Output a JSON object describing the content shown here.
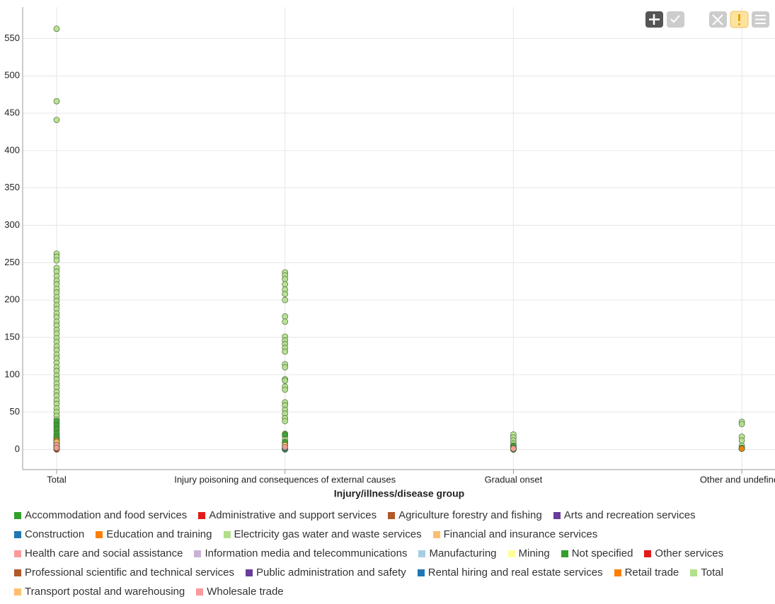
{
  "chart_data": {
    "type": "scatter",
    "x_label": "Injury/illness/disease group",
    "categories": [
      "Total",
      "Injury poisoning and consequences of external causes",
      "Gradual onset",
      "Other and undefined"
    ],
    "ylim": [
      -27,
      592
    ],
    "yticks": [
      0,
      50,
      100,
      150,
      200,
      250,
      300,
      350,
      400,
      450,
      500,
      550
    ],
    "grid": true,
    "series": [
      {
        "name": "Accommodation and food services",
        "color": "#33a02c",
        "values": [
          [
            14,
            9
          ],
          [
            6
          ],
          [
            2
          ],
          [
            1
          ]
        ]
      },
      {
        "name": "Administrative and support services",
        "color": "#e31a1c",
        "values": [
          [
            4,
            1
          ],
          [
            2
          ],
          [
            1
          ],
          []
        ]
      },
      {
        "name": "Agriculture forestry and fishing",
        "color": "#b15928",
        "values": [
          [
            6,
            2
          ],
          [
            3
          ],
          [
            1
          ],
          []
        ]
      },
      {
        "name": "Arts and recreation services",
        "color": "#6a3d9a",
        "values": [
          [
            2
          ],
          [
            1
          ],
          [
            0
          ],
          []
        ]
      },
      {
        "name": "Construction",
        "color": "#1f78b4",
        "values": [
          [
            11,
            5
          ],
          [
            8
          ],
          [
            2
          ],
          [
            1
          ]
        ]
      },
      {
        "name": "Education and training",
        "color": "#ff7f00",
        "values": [
          [
            7,
            3
          ],
          [
            4
          ],
          [
            2
          ],
          []
        ]
      },
      {
        "name": "Electricity gas water and waste services",
        "color": "#b2df8a",
        "values": [
          [
            3
          ],
          [
            1
          ],
          [
            0
          ],
          []
        ]
      },
      {
        "name": "Financial and insurance services",
        "color": "#fdbf6f",
        "values": [
          [
            2
          ],
          [
            0
          ],
          [
            0
          ],
          []
        ]
      },
      {
        "name": "Health care and social assistance",
        "color": "#fb9a99",
        "values": [
          [
            17,
            8
          ],
          [
            10
          ],
          [
            4
          ],
          [
            2
          ]
        ]
      },
      {
        "name": "Information media and telecommunications",
        "color": "#cab2d6",
        "values": [
          [
            2
          ],
          [
            1
          ],
          [
            0
          ],
          []
        ]
      },
      {
        "name": "Manufacturing",
        "color": "#a6cee3",
        "values": [
          [
            13,
            6
          ],
          [
            7
          ],
          [
            3
          ],
          [
            1
          ]
        ]
      },
      {
        "name": "Mining",
        "color": "#ffff99",
        "values": [
          [
            3
          ],
          [
            1
          ],
          [
            0
          ],
          []
        ]
      },
      {
        "name": "Not specified",
        "color": "#33a02c",
        "values": [
          [
            38,
            33,
            28,
            22,
            17,
            12,
            8
          ],
          [
            20,
            10,
            3
          ],
          [
            5
          ],
          [
            2
          ]
        ]
      },
      {
        "name": "Other services",
        "color": "#e31a1c",
        "values": [
          [
            3,
            0
          ],
          [
            1
          ],
          [
            0
          ],
          []
        ]
      },
      {
        "name": "Professional scientific and technical services",
        "color": "#b15928",
        "values": [
          [
            4
          ],
          [
            2
          ],
          [
            0
          ],
          []
        ]
      },
      {
        "name": "Public administration and safety",
        "color": "#6a3d9a",
        "values": [
          [
            9,
            4
          ],
          [
            5
          ],
          [
            2
          ],
          []
        ]
      },
      {
        "name": "Rental hiring and real estate services",
        "color": "#1f78b4",
        "values": [
          [
            2
          ],
          [
            1
          ],
          [
            0
          ],
          []
        ]
      },
      {
        "name": "Retail trade",
        "color": "#ff7f00",
        "values": [
          [
            12,
            5
          ],
          [
            6
          ],
          [
            2
          ],
          [
            1
          ]
        ]
      },
      {
        "name": "Total",
        "color": "#b2df8a",
        "values": [
          [
            563,
            466,
            441,
            262,
            258,
            253,
            243,
            238,
            232,
            226,
            221,
            215,
            210,
            204,
            199,
            193,
            188,
            182,
            177,
            171,
            166,
            160,
            155,
            149,
            144,
            138,
            133,
            127,
            122,
            116,
            110,
            105,
            99,
            94,
            88,
            83,
            77,
            72,
            66,
            61,
            55,
            50,
            45,
            40,
            35,
            30,
            25,
            20,
            15,
            10,
            5,
            0
          ],
          [
            237,
            233,
            228,
            221,
            214,
            208,
            200,
            178,
            171,
            151,
            146,
            141,
            136,
            131,
            114,
            110,
            94,
            92,
            84,
            80,
            63,
            59,
            53,
            48,
            42,
            38,
            21,
            18,
            14,
            8,
            2,
            0
          ],
          [
            20,
            16,
            12,
            8,
            5,
            2,
            0
          ],
          [
            37,
            34,
            17,
            12,
            5,
            2
          ]
        ]
      },
      {
        "name": "Transport postal and warehousing",
        "color": "#fdbf6f",
        "values": [
          [
            10,
            4
          ],
          [
            6
          ],
          [
            2
          ],
          []
        ]
      },
      {
        "name": "Wholesale trade",
        "color": "#fb9a99",
        "values": [
          [
            6,
            2
          ],
          [
            3
          ],
          [
            1
          ],
          []
        ]
      }
    ]
  }
}
